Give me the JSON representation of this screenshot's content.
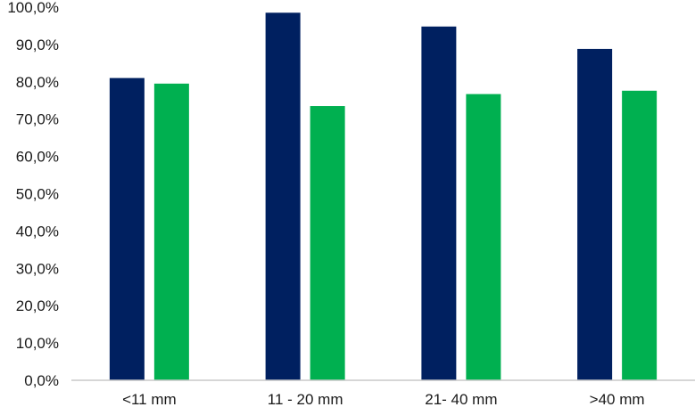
{
  "chart_data": {
    "type": "bar",
    "categories": [
      "<11 mm",
      "11 - 20 mm",
      "21- 40 mm",
      ">40 mm"
    ],
    "series": [
      {
        "values": [
          81.0,
          98.5,
          94.8,
          88.8
        ],
        "color": "#002060"
      },
      {
        "values": [
          79.5,
          73.5,
          76.7,
          77.6
        ],
        "color": "#00b050"
      }
    ],
    "y_ticks": [
      "0,0%",
      "10,0%",
      "20,0%",
      "30,0%",
      "40,0%",
      "50,0%",
      "60,0%",
      "70,0%",
      "80,0%",
      "90,0%",
      "100,0%"
    ],
    "ylim": [
      0,
      100
    ],
    "grid": false,
    "legend": "none"
  }
}
